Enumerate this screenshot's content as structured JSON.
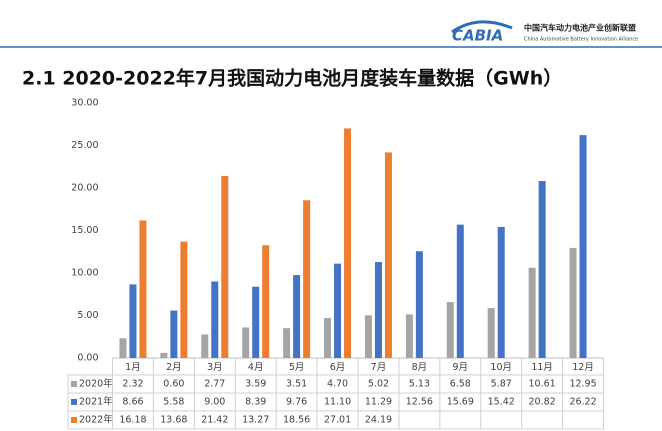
{
  "header": {
    "logo": "CABIA",
    "org_cn": "中国汽车动力电池产业创新联盟",
    "org_en": "China Automotive Battery Innovation Alliance"
  },
  "chart_data": {
    "type": "bar",
    "title": "2.1 2020-2022年7月我国动力电池月度装车量数据（GWh）",
    "categories": [
      "1月",
      "2月",
      "3月",
      "4月",
      "5月",
      "6月",
      "7月",
      "8月",
      "9月",
      "10月",
      "11月",
      "12月"
    ],
    "series": [
      {
        "name": "2020年",
        "color": "#a5a5a5",
        "values": [
          2.32,
          0.6,
          2.77,
          3.59,
          3.51,
          4.7,
          5.02,
          5.13,
          6.58,
          5.87,
          10.61,
          12.95
        ],
        "value_labels": [
          "2.32",
          "0.60",
          "2.77",
          "3.59",
          "3.51",
          "4.70",
          "5.02",
          "5.13",
          "6.58",
          "5.87",
          "10.61",
          "12.95"
        ]
      },
      {
        "name": "2021年",
        "color": "#4472c4",
        "values": [
          8.66,
          5.58,
          9.0,
          8.39,
          9.76,
          11.1,
          11.29,
          12.56,
          15.69,
          15.42,
          20.82,
          26.22
        ],
        "value_labels": [
          "8.66",
          "5.58",
          "9.00",
          "8.39",
          "9.76",
          "11.10",
          "11.29",
          "12.56",
          "15.69",
          "15.42",
          "20.82",
          "26.22"
        ]
      },
      {
        "name": "2022年",
        "color": "#ed7d31",
        "values": [
          16.18,
          13.68,
          21.42,
          13.27,
          18.56,
          27.01,
          24.19,
          null,
          null,
          null,
          null,
          null
        ],
        "value_labels": [
          "16.18",
          "13.68",
          "21.42",
          "13.27",
          "18.56",
          "27.01",
          "24.19",
          null,
          null,
          null,
          null,
          null
        ]
      }
    ],
    "ylim": [
      0,
      30
    ],
    "yticks": [
      {
        "value": 0,
        "label": "0.00"
      },
      {
        "value": 5,
        "label": "5.00"
      },
      {
        "value": 10,
        "label": "10.00"
      },
      {
        "value": 15,
        "label": "15.00"
      },
      {
        "value": 20,
        "label": "20.00"
      },
      {
        "value": 25,
        "label": "25.00"
      },
      {
        "value": 30,
        "label": "30.00"
      }
    ],
    "grid": false
  }
}
